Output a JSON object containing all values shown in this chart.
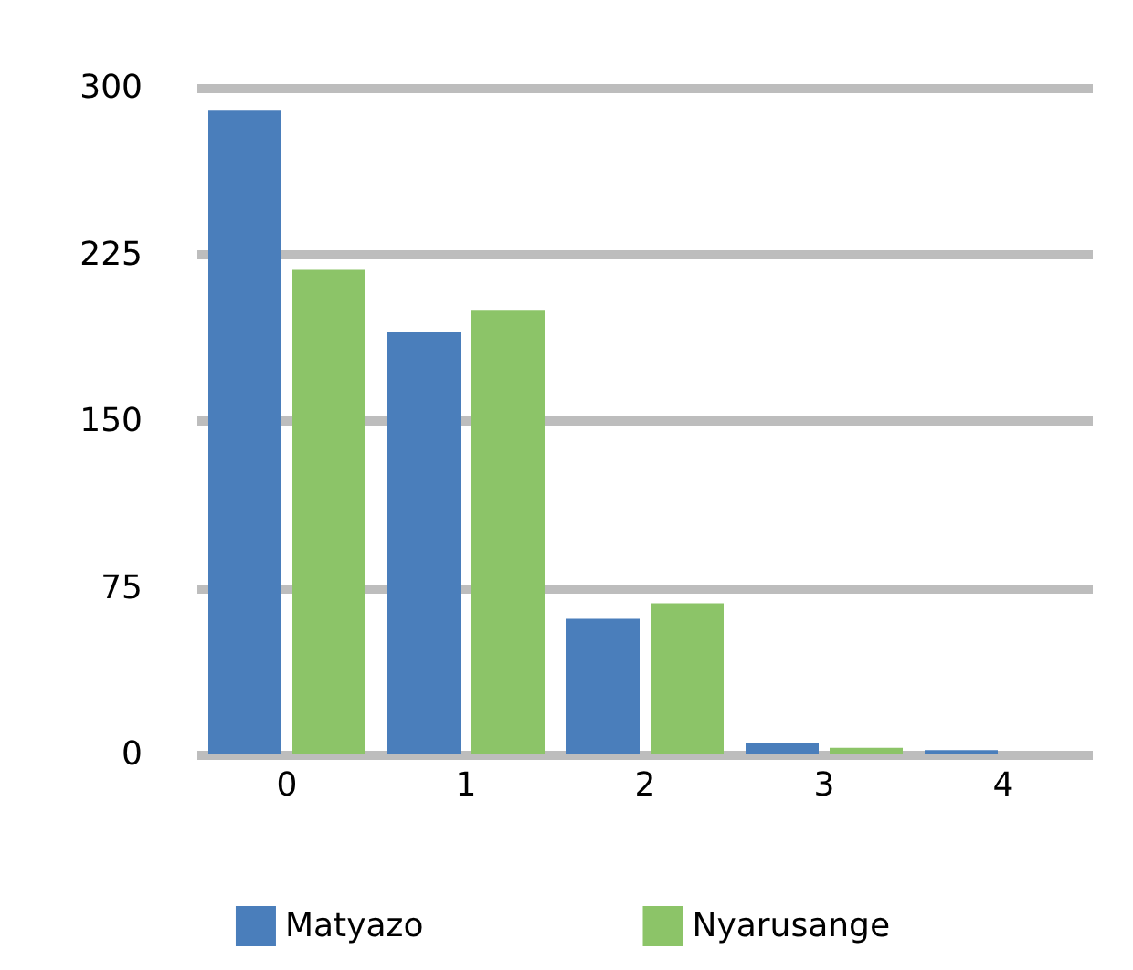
{
  "chart_data": {
    "type": "bar",
    "categories": [
      "0",
      "1",
      "2",
      "3",
      "4"
    ],
    "series": [
      {
        "name": "Matyazo",
        "color": "#4a7ebb",
        "values": [
          290,
          190,
          61,
          5,
          2
        ]
      },
      {
        "name": "Nyarusange",
        "color": "#8cc468",
        "values": [
          218,
          200,
          68,
          3,
          null
        ]
      }
    ],
    "ylim": [
      0,
      300
    ],
    "yticks": [
      0,
      75,
      150,
      225,
      300
    ],
    "grid": "y",
    "legend": "bottom"
  }
}
